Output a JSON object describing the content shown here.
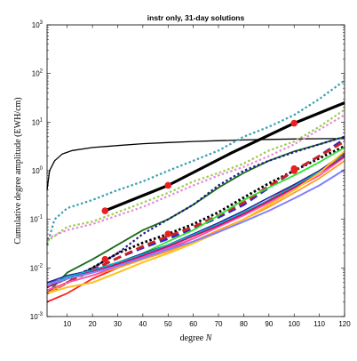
{
  "chart_data": {
    "type": "line",
    "title": "instr only, 31-day solutions",
    "xlabel_text": "degree",
    "xlabel_var": "N",
    "ylabel": "Cumulative degree amplitude (EWH/cm)",
    "xlim": [
      2,
      120
    ],
    "ylim": [
      0.001,
      1000
    ],
    "yscale": "log",
    "grid": false,
    "x_ticks": [
      10,
      20,
      30,
      40,
      50,
      60,
      70,
      80,
      90,
      100,
      110,
      120
    ],
    "y_ticks": [
      {
        "value": 0.001,
        "base": "10",
        "exp": "-3"
      },
      {
        "value": 0.01,
        "base": "10",
        "exp": "-2"
      },
      {
        "value": 0.1,
        "base": "10",
        "exp": "-1"
      },
      {
        "value": 1,
        "base": "10",
        "exp": "0"
      },
      {
        "value": 10,
        "base": "10",
        "exp": "1"
      },
      {
        "value": 100,
        "base": "10",
        "exp": "2"
      },
      {
        "value": 1000,
        "base": "10",
        "exp": "3"
      }
    ],
    "series": [
      {
        "color": "#000000",
        "width": 1.3,
        "dash": "",
        "x": [
          2,
          3,
          5,
          8,
          12,
          20,
          30,
          40,
          50,
          60,
          70,
          80,
          90,
          100,
          110,
          120
        ],
        "y": [
          0.4,
          1.0,
          1.6,
          2.2,
          2.6,
          3.0,
          3.3,
          3.6,
          3.8,
          4.0,
          4.15,
          4.3,
          4.4,
          4.5,
          4.55,
          4.6
        ]
      },
      {
        "color": "#000000",
        "width": 3.2,
        "dash": "",
        "x": [
          25,
          50,
          75,
          100,
          120
        ],
        "y": [
          0.15,
          0.5,
          2.3,
          9.5,
          25
        ]
      },
      {
        "color": "#3aa0b0",
        "width": 2.2,
        "dash": "2.5,2.5",
        "x": [
          2,
          5,
          10,
          20,
          30,
          40,
          50,
          60,
          70,
          80,
          90,
          100,
          110,
          120
        ],
        "y": [
          0.03,
          0.1,
          0.17,
          0.25,
          0.4,
          0.6,
          1.0,
          1.6,
          2.6,
          5.0,
          8.0,
          14,
          30,
          72
        ]
      },
      {
        "color": "#9acd50",
        "width": 2.2,
        "dash": "2.5,2.5",
        "x": [
          2,
          10,
          20,
          30,
          40,
          50,
          60,
          70,
          80,
          90,
          100,
          110,
          120
        ],
        "y": [
          0.035,
          0.07,
          0.09,
          0.14,
          0.22,
          0.35,
          0.6,
          0.9,
          1.4,
          2.6,
          4.0,
          8.0,
          18
        ]
      },
      {
        "color": "#e88ad8",
        "width": 2.2,
        "dash": "2.5,2.5",
        "x": [
          2,
          10,
          20,
          30,
          40,
          50,
          60,
          70,
          80,
          90,
          100,
          110,
          120
        ],
        "y": [
          0.04,
          0.06,
          0.08,
          0.12,
          0.18,
          0.3,
          0.5,
          0.8,
          1.2,
          2.0,
          3.5,
          7.0,
          14
        ]
      },
      {
        "color": "#1a6a1a",
        "width": 1.8,
        "dash": "",
        "x": [
          2,
          10,
          20,
          30,
          40,
          50,
          60,
          70,
          80,
          90,
          100,
          110,
          120
        ],
        "y": [
          0.003,
          0.008,
          0.015,
          0.03,
          0.06,
          0.1,
          0.2,
          0.45,
          0.9,
          1.6,
          2.5,
          3.5,
          5.0
        ]
      },
      {
        "color": "#1a1a8a",
        "width": 2.2,
        "dash": "2.5,2.5",
        "x": [
          2,
          10,
          20,
          30,
          40,
          50,
          60,
          70,
          80,
          90,
          100,
          110,
          120
        ],
        "y": [
          0.004,
          0.006,
          0.01,
          0.02,
          0.05,
          0.1,
          0.2,
          0.5,
          1.0,
          1.6,
          2.4,
          3.5,
          5.0
        ]
      },
      {
        "color": "#000000",
        "width": 2.8,
        "dash": "2.5,2.5",
        "x": [
          2,
          10,
          20,
          30,
          40,
          50,
          60,
          70,
          80,
          90,
          100,
          110,
          120
        ],
        "y": [
          0.003,
          0.005,
          0.01,
          0.02,
          0.033,
          0.05,
          0.08,
          0.14,
          0.28,
          0.55,
          1.0,
          1.8,
          3.2
        ]
      },
      {
        "color": "#2a2ad0",
        "width": 2.8,
        "dash": "9,5",
        "x": [
          2,
          10,
          20,
          30,
          40,
          50,
          60,
          70,
          80,
          90,
          100,
          110,
          120
        ],
        "y": [
          0.003,
          0.005,
          0.009,
          0.016,
          0.026,
          0.04,
          0.065,
          0.11,
          0.2,
          0.45,
          1.0,
          2.0,
          4.5
        ]
      },
      {
        "color": "#d02020",
        "width": 2.8,
        "dash": "9,5",
        "x": [
          2,
          10,
          20,
          30,
          40,
          50,
          60,
          70,
          80,
          90,
          100,
          110,
          120
        ],
        "y": [
          0.003,
          0.005,
          0.009,
          0.016,
          0.028,
          0.045,
          0.07,
          0.12,
          0.22,
          0.48,
          1.0,
          2.0,
          4.0
        ]
      },
      {
        "color": "#30e030",
        "width": 1.8,
        "dash": "",
        "x": [
          2,
          10,
          20,
          30,
          40,
          50,
          60,
          70,
          80,
          90,
          100,
          110,
          120
        ],
        "y": [
          0.004,
          0.006,
          0.008,
          0.012,
          0.02,
          0.035,
          0.06,
          0.12,
          0.25,
          0.45,
          0.8,
          1.5,
          3.0
        ]
      },
      {
        "color": "#ff2020",
        "width": 1.8,
        "dash": "",
        "x": [
          2,
          10,
          20,
          30,
          40,
          50,
          60,
          70,
          80,
          90,
          100,
          110,
          120
        ],
        "y": [
          0.002,
          0.003,
          0.006,
          0.01,
          0.016,
          0.025,
          0.04,
          0.07,
          0.13,
          0.25,
          0.5,
          1.0,
          2.2
        ]
      },
      {
        "color": "#ff9a20",
        "width": 1.8,
        "dash": "",
        "x": [
          2,
          10,
          20,
          30,
          40,
          50,
          60,
          70,
          80,
          90,
          100,
          110,
          120
        ],
        "y": [
          0.003,
          0.005,
          0.007,
          0.01,
          0.015,
          0.022,
          0.035,
          0.06,
          0.1,
          0.18,
          0.35,
          0.7,
          1.6
        ]
      },
      {
        "color": "#ff50b0",
        "width": 1.8,
        "dash": "",
        "x": [
          2,
          10,
          20,
          30,
          40,
          50,
          60,
          70,
          80,
          90,
          100,
          110,
          120
        ],
        "y": [
          0.0035,
          0.005,
          0.007,
          0.011,
          0.017,
          0.026,
          0.04,
          0.07,
          0.12,
          0.22,
          0.42,
          0.8,
          1.9
        ]
      },
      {
        "color": "#a030c0",
        "width": 1.8,
        "dash": "",
        "x": [
          2,
          10,
          20,
          30,
          40,
          50,
          60,
          70,
          80,
          90,
          100,
          110,
          120
        ],
        "y": [
          0.005,
          0.006,
          0.008,
          0.012,
          0.018,
          0.028,
          0.045,
          0.075,
          0.13,
          0.24,
          0.45,
          0.9,
          2.0
        ]
      },
      {
        "color": "#2020a0",
        "width": 1.5,
        "dash": "",
        "x": [
          2,
          10,
          20,
          30,
          40,
          50,
          60,
          70,
          80,
          90,
          100,
          110,
          120
        ],
        "y": [
          0.005,
          0.007,
          0.009,
          0.013,
          0.02,
          0.03,
          0.05,
          0.085,
          0.15,
          0.28,
          0.52,
          1.0,
          2.3
        ]
      },
      {
        "color": "#00b8c0",
        "width": 1.5,
        "dash": "",
        "x": [
          2,
          10,
          20,
          30,
          40,
          50,
          60,
          70,
          80,
          90,
          100,
          110,
          120
        ],
        "y": [
          0.0045,
          0.0065,
          0.009,
          0.013,
          0.019,
          0.03,
          0.048,
          0.08,
          0.14,
          0.25,
          0.48,
          0.95,
          2.1
        ]
      },
      {
        "color": "#c01060",
        "width": 1.5,
        "dash": "",
        "x": [
          2,
          10,
          20,
          30,
          40,
          50,
          60,
          70,
          80,
          90,
          100,
          110,
          120
        ],
        "y": [
          0.004,
          0.006,
          0.0085,
          0.012,
          0.018,
          0.028,
          0.045,
          0.075,
          0.13,
          0.24,
          0.45,
          0.9,
          2.0
        ]
      },
      {
        "color": "#ffc020",
        "width": 2.0,
        "dash": "",
        "x": [
          2,
          10,
          20,
          30,
          40,
          50,
          60,
          70,
          80,
          90,
          100,
          110,
          120
        ],
        "y": [
          0.003,
          0.004,
          0.005,
          0.008,
          0.013,
          0.02,
          0.032,
          0.055,
          0.1,
          0.2,
          0.4,
          0.9,
          2.5
        ]
      },
      {
        "color": "#8080ff",
        "width": 2.0,
        "dash": "",
        "x": [
          2,
          10,
          20,
          30,
          40,
          50,
          60,
          70,
          80,
          90,
          100,
          110,
          120
        ],
        "y": [
          0.0045,
          0.006,
          0.008,
          0.011,
          0.016,
          0.024,
          0.035,
          0.055,
          0.09,
          0.15,
          0.27,
          0.5,
          1.05
        ]
      }
    ],
    "markers": [
      {
        "x": 25,
        "y": 0.15
      },
      {
        "x": 50,
        "y": 0.5
      },
      {
        "x": 100,
        "y": 9.5
      },
      {
        "x": 25,
        "y": 0.015
      },
      {
        "x": 50,
        "y": 0.05
      },
      {
        "x": 100,
        "y": 1.0
      },
      {
        "x": 100,
        "y": 1.1
      }
    ],
    "marker_color": "#e82020"
  }
}
